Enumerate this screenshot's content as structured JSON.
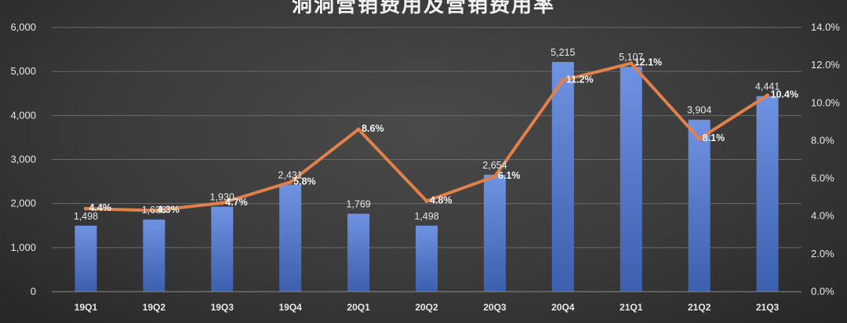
{
  "chart_data": {
    "type": "bar",
    "title": "洞洞营销费用及营销费用率",
    "categories": [
      "19Q1",
      "19Q2",
      "19Q3",
      "19Q4",
      "20Q1",
      "20Q2",
      "20Q3",
      "20Q4",
      "21Q1",
      "21Q2",
      "21Q3"
    ],
    "series": [
      {
        "type": "bar",
        "axis": "left",
        "values": [
          1498,
          1636,
          1930,
          2431,
          1769,
          1498,
          2654,
          5215,
          5107,
          3904,
          4441
        ],
        "labels": [
          "1,498",
          "1,636",
          "1,930",
          "2,431",
          "1,769",
          "1,498",
          "2,654",
          "5,215",
          "5,107",
          "3,904",
          "4,441"
        ],
        "color": "#4f74c8"
      },
      {
        "type": "line",
        "axis": "right",
        "values": [
          4.4,
          4.3,
          4.7,
          5.8,
          8.6,
          4.8,
          6.1,
          11.2,
          12.1,
          8.1,
          10.4
        ],
        "labels": [
          "4.4%",
          "4.3%",
          "4.7%",
          "5.8%",
          "8.6%",
          "4.8%",
          "6.1%",
          "11.2%",
          "12.1%",
          "8.1%",
          "10.4%"
        ],
        "color": "#e0804a"
      }
    ],
    "y_left": {
      "ylim": [
        0,
        6000
      ],
      "ticks": [
        "0",
        "1,000",
        "2,000",
        "3,000",
        "4,000",
        "5,000",
        "6,000"
      ]
    },
    "y_right": {
      "ylim": [
        0,
        14
      ],
      "ticks": [
        "0.0%",
        "2.0%",
        "4.0%",
        "6.0%",
        "8.0%",
        "10.0%",
        "12.0%",
        "14.0%"
      ]
    },
    "grid": true,
    "legend": "none"
  }
}
